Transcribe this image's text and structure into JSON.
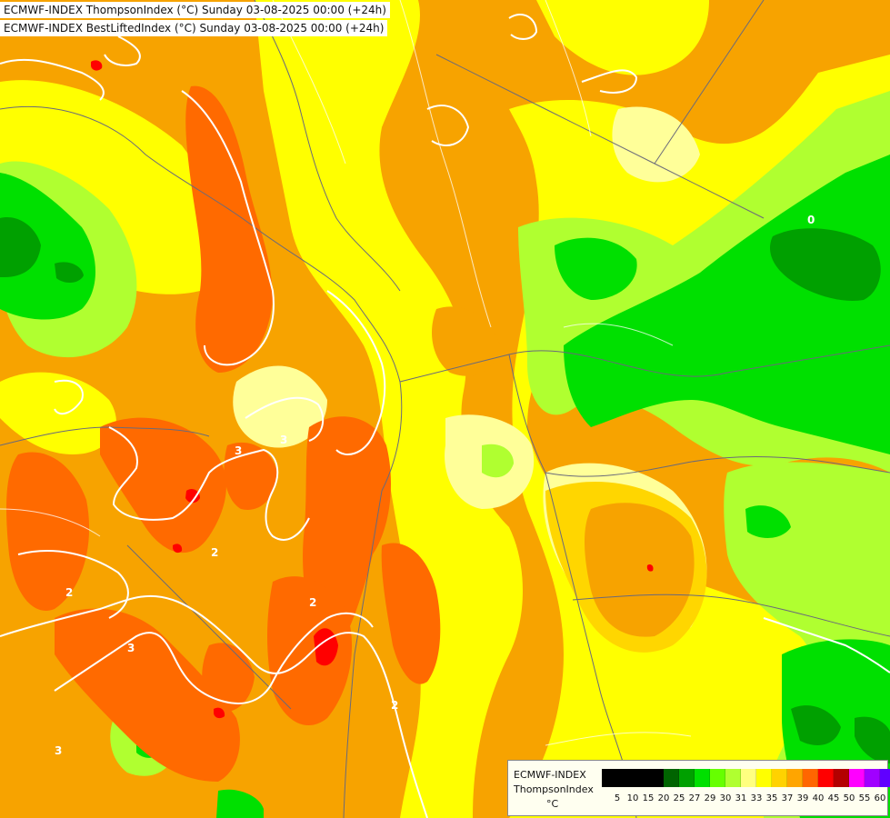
{
  "header": {
    "line1": "ECMWF-INDEX ThompsonIndex (°C) Sunday 03-08-2025 00:00 (+24h)",
    "line2": "ECMWF-INDEX BestLiftedIndex (°C) Sunday 03-08-2025 00:00 (+24h)"
  },
  "legend": {
    "title": "ECMWF-INDEX",
    "variable": "ThompsonIndex",
    "unit": "°C",
    "ticks": [
      "5",
      "10",
      "15",
      "20",
      "25",
      "27",
      "29",
      "30",
      "31",
      "33",
      "35",
      "37",
      "39",
      "40",
      "45",
      "50",
      "55",
      "60"
    ],
    "colors": [
      "#000000",
      "#000000",
      "#000000",
      "#000000",
      "#006400",
      "#00a000",
      "#00e000",
      "#66ff00",
      "#b0ff30",
      "#ffff80",
      "#ffff00",
      "#ffd200",
      "#ffa500",
      "#ff6600",
      "#ff0000",
      "#b40000",
      "#ff00ff",
      "#a000ff",
      "#6000ff",
      "#0000ff"
    ]
  },
  "contour_labels": [
    "2",
    "2",
    "2",
    "2",
    "3",
    "3",
    "3",
    "3",
    "0"
  ],
  "colors": {
    "orange": "#f7a300",
    "dark_orange": "#ff6a00",
    "red": "#ff0000",
    "yellow": "#ffff00",
    "light_yellow": "#ffff99",
    "yellow_orange": "#ffd600",
    "light_green": "#b0ff30",
    "green": "#00e000",
    "dark_green": "#00a000",
    "forest": "#006400",
    "border": "#6a6a7a",
    "contour": "#ffffff"
  }
}
